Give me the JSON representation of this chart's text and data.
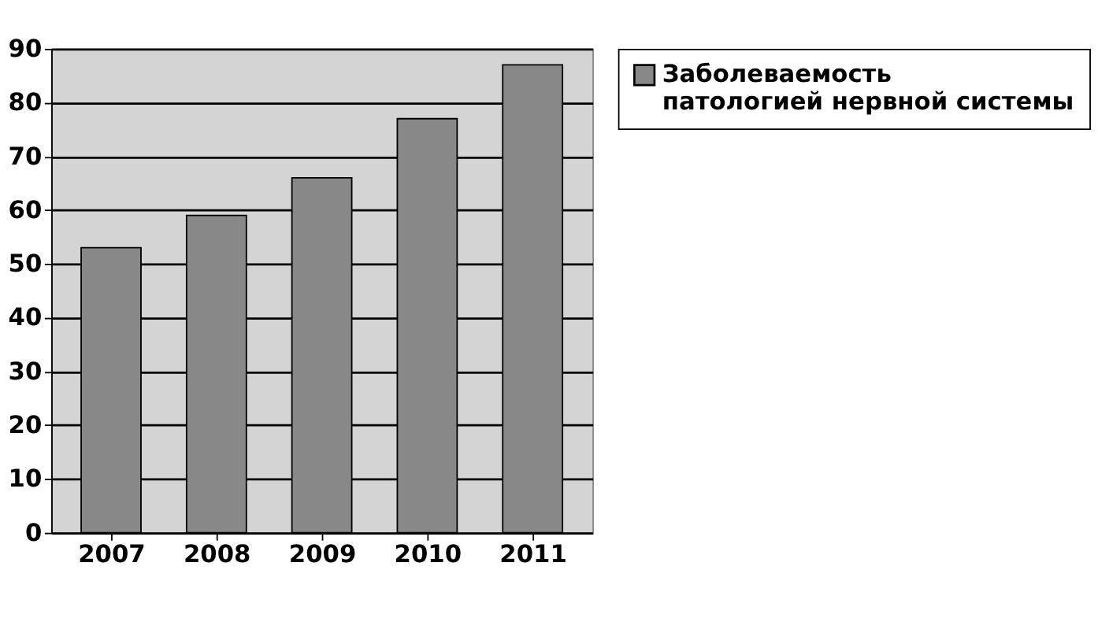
{
  "chart_data": {
    "type": "bar",
    "categories": [
      "2007",
      "2008",
      "2009",
      "2010",
      "2011"
    ],
    "series": [
      {
        "name": "Заболеваемость патологией нервной системы",
        "color": "#888888",
        "values": [
          53,
          59,
          66,
          77,
          87
        ]
      }
    ],
    "ylim": [
      0,
      90
    ],
    "yticks": [
      0,
      10,
      20,
      30,
      40,
      50,
      60,
      70,
      80,
      90
    ],
    "grid": "y",
    "legend": "right"
  }
}
